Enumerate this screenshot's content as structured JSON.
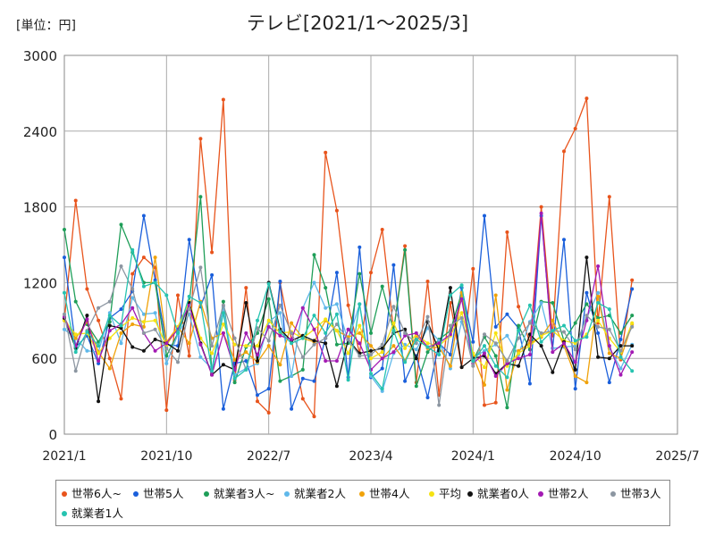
{
  "unit_label": "[単位：円]",
  "chart_data": {
    "type": "line",
    "title": "テレビ[2021/1～2025/3]",
    "xlabel": "",
    "ylabel": "",
    "ylim": [
      0,
      3000
    ],
    "yticks": [
      0,
      600,
      1200,
      1800,
      2400,
      3000
    ],
    "x_ticks": [
      "2021/1",
      "2021/10",
      "2022/7",
      "2023/4",
      "2024/1",
      "2024/10",
      "2025/7"
    ],
    "grid": true,
    "legend_position": "bottom",
    "x": [
      "2021/1",
      "2021/2",
      "2021/3",
      "2021/4",
      "2021/5",
      "2021/6",
      "2021/7",
      "2021/8",
      "2021/9",
      "2021/10",
      "2021/11",
      "2021/12",
      "2022/1",
      "2022/2",
      "2022/3",
      "2022/4",
      "2022/5",
      "2022/6",
      "2022/7",
      "2022/8",
      "2022/9",
      "2022/10",
      "2022/11",
      "2022/12",
      "2023/1",
      "2023/2",
      "2023/3",
      "2023/4",
      "2023/5",
      "2023/6",
      "2023/7",
      "2023/8",
      "2023/9",
      "2023/10",
      "2023/11",
      "2023/12",
      "2024/1",
      "2024/2",
      "2024/3",
      "2024/4",
      "2024/5",
      "2024/6",
      "2024/7",
      "2024/8",
      "2024/9",
      "2024/10",
      "2024/11",
      "2024/12",
      "2025/1",
      "2025/2",
      "2025/3"
    ],
    "series": [
      {
        "name": "世帯6人~",
        "color": "#e8541c",
        "values": [
          900,
          1850,
          1150,
          900,
          600,
          280,
          1270,
          1400,
          1320,
          190,
          1100,
          620,
          2340,
          1440,
          2650,
          430,
          1160,
          260,
          170,
          1200,
          750,
          280,
          140,
          2230,
          1770,
          1020,
          640,
          1280,
          1620,
          820,
          1490,
          410,
          1210,
          310,
          1040,
          530,
          1310,
          230,
          250,
          1600,
          1010,
          720,
          1800,
          780,
          2240,
          2420,
          2660,
          880,
          1880,
          590,
          1220
        ]
      },
      {
        "name": "世帯5人",
        "color": "#1a5fdb",
        "values": [
          1400,
          690,
          780,
          560,
          920,
          990,
          1130,
          1730,
          1220,
          710,
          700,
          1540,
          1010,
          1260,
          200,
          560,
          580,
          310,
          360,
          1210,
          200,
          440,
          420,
          760,
          1280,
          450,
          1480,
          450,
          520,
          1340,
          420,
          620,
          290,
          720,
          630,
          1160,
          730,
          1730,
          850,
          950,
          840,
          400,
          1730,
          680,
          1540,
          360,
          1120,
          800,
          410,
          750,
          1150
        ]
      },
      {
        "name": "就業者3人~",
        "color": "#1e9e58",
        "values": [
          1620,
          1050,
          870,
          730,
          890,
          1660,
          1440,
          1200,
          1200,
          620,
          800,
          1030,
          1880,
          480,
          1050,
          410,
          690,
          800,
          1070,
          420,
          460,
          510,
          1420,
          1160,
          710,
          720,
          1270,
          800,
          1170,
          820,
          1460,
          380,
          650,
          750,
          820,
          1120,
          580,
          770,
          620,
          210,
          860,
          670,
          1050,
          1040,
          740,
          880,
          1030,
          920,
          940,
          800,
          940
        ]
      },
      {
        "name": "就業者2人",
        "color": "#5fb8ea",
        "values": [
          830,
          760,
          660,
          650,
          960,
          720,
          1080,
          950,
          960,
          560,
          790,
          950,
          610,
          520,
          1010,
          470,
          520,
          560,
          890,
          960,
          460,
          1000,
          1200,
          1000,
          1030,
          740,
          1030,
          460,
          340,
          640,
          710,
          670,
          840,
          740,
          520,
          890,
          600,
          660,
          710,
          780,
          630,
          890,
          1040,
          680,
          690,
          700,
          920,
          1120,
          680,
          520,
          710
        ]
      },
      {
        "name": "世帯4人",
        "color": "#f0a20a",
        "values": [
          920,
          760,
          890,
          650,
          520,
          800,
          870,
          850,
          1400,
          730,
          850,
          720,
          1050,
          760,
          800,
          590,
          650,
          570,
          700,
          550,
          880,
          760,
          730,
          900,
          820,
          770,
          800,
          700,
          600,
          700,
          580,
          780,
          680,
          690,
          540,
          1120,
          620,
          390,
          1100,
          350,
          660,
          720,
          770,
          900,
          700,
          460,
          410,
          1090,
          640,
          600,
          870
        ]
      },
      {
        "name": "平均",
        "color": "#f5e211",
        "values": [
          900,
          790,
          800,
          640,
          760,
          850,
          920,
          890,
          900,
          700,
          850,
          1050,
          760,
          640,
          870,
          710,
          700,
          700,
          900,
          800,
          810,
          760,
          830,
          910,
          820,
          640,
          860,
          600,
          650,
          880,
          680,
          790,
          720,
          700,
          780,
          960,
          640,
          530,
          800,
          540,
          640,
          700,
          780,
          820,
          740,
          720,
          790,
          900,
          760,
          650,
          880
        ]
      },
      {
        "name": "就業者0人",
        "color": "#111111",
        "values": [
          920,
          680,
          940,
          260,
          860,
          840,
          690,
          660,
          750,
          720,
          660,
          1040,
          720,
          470,
          550,
          510,
          1040,
          580,
          1200,
          830,
          740,
          780,
          740,
          720,
          380,
          750,
          640,
          660,
          680,
          800,
          830,
          600,
          890,
          660,
          1160,
          530,
          600,
          620,
          480,
          560,
          540,
          790,
          700,
          490,
          730,
          510,
          1400,
          610,
          600,
          700,
          700
        ]
      },
      {
        "name": "世帯2人",
        "color": "#a31ab3",
        "values": [
          930,
          700,
          910,
          580,
          820,
          870,
          1000,
          800,
          660,
          720,
          830,
          1020,
          710,
          470,
          800,
          510,
          800,
          630,
          850,
          780,
          750,
          1000,
          830,
          580,
          580,
          830,
          720,
          510,
          600,
          650,
          780,
          800,
          690,
          720,
          790,
          1070,
          560,
          640,
          460,
          560,
          600,
          630,
          1750,
          650,
          720,
          570,
          900,
          1330,
          700,
          470,
          650
        ]
      },
      {
        "name": "世帯3人",
        "color": "#8c96a1",
        "values": [
          950,
          500,
          820,
          1000,
          1050,
          1330,
          1150,
          800,
          830,
          680,
          570,
          990,
          1320,
          700,
          1020,
          760,
          510,
          840,
          740,
          1020,
          800,
          610,
          710,
          760,
          870,
          750,
          620,
          630,
          710,
          1010,
          800,
          720,
          930,
          230,
          860,
          920,
          540,
          790,
          720,
          580,
          760,
          880,
          800,
          820,
          810,
          670,
          940,
          850,
          830,
          660,
          850
        ]
      },
      {
        "name": "就業者1人",
        "color": "#26c3b0",
        "values": [
          1120,
          650,
          810,
          700,
          940,
          860,
          1460,
          1170,
          1200,
          1100,
          800,
          1090,
          1040,
          500,
          960,
          440,
          510,
          900,
          1190,
          810,
          720,
          760,
          940,
          800,
          950,
          430,
          1030,
          480,
          360,
          820,
          570,
          750,
          690,
          630,
          1100,
          1180,
          580,
          700,
          540,
          450,
          820,
          1020,
          730,
          820,
          860,
          740,
          770,
          1040,
          990,
          610,
          500
        ]
      }
    ]
  }
}
